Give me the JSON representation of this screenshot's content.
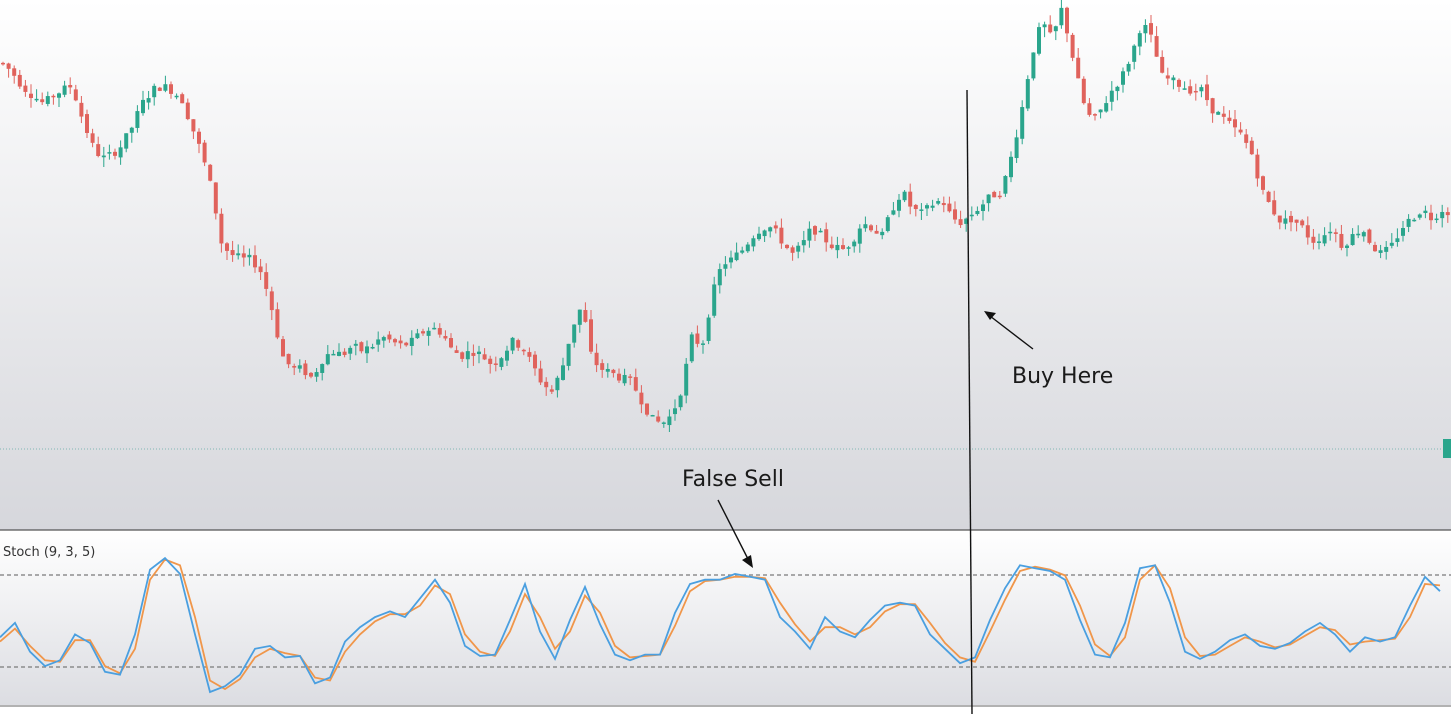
{
  "chart_data": {
    "type": "candlestick",
    "colors": {
      "up": "#2aa58c",
      "down": "#e0625c",
      "stoch_k": "#4a9fe0",
      "stoch_d": "#f0964a",
      "price_bg_top": "#ffffff",
      "price_bg_bottom": "#d8d9de",
      "guide": "#111111"
    },
    "price_axis": {
      "range": [
        0,
        100
      ],
      "note_units": "relative (no price scale visible)"
    },
    "price_close_path": [
      [
        0,
        88
      ],
      [
        10,
        86
      ],
      [
        20,
        83
      ],
      [
        30,
        81
      ],
      [
        42,
        79
      ],
      [
        52,
        81
      ],
      [
        60,
        82
      ],
      [
        70,
        83
      ],
      [
        80,
        76
      ],
      [
        90,
        70
      ],
      [
        100,
        67
      ],
      [
        110,
        68
      ],
      [
        120,
        70
      ],
      [
        130,
        74
      ],
      [
        140,
        79
      ],
      [
        150,
        82
      ],
      [
        160,
        83
      ],
      [
        170,
        82
      ],
      [
        180,
        80
      ],
      [
        190,
        74
      ],
      [
        200,
        68
      ],
      [
        210,
        60
      ],
      [
        220,
        48
      ],
      [
        230,
        46
      ],
      [
        240,
        45
      ],
      [
        250,
        45
      ],
      [
        260,
        42
      ],
      [
        270,
        34
      ],
      [
        280,
        24
      ],
      [
        290,
        21
      ],
      [
        300,
        21
      ],
      [
        310,
        19
      ],
      [
        320,
        23
      ],
      [
        330,
        25
      ],
      [
        340,
        24
      ],
      [
        350,
        26
      ],
      [
        360,
        25
      ],
      [
        370,
        26
      ],
      [
        380,
        28
      ],
      [
        390,
        27
      ],
      [
        400,
        26
      ],
      [
        410,
        27
      ],
      [
        420,
        29
      ],
      [
        430,
        30
      ],
      [
        440,
        29
      ],
      [
        450,
        25
      ],
      [
        460,
        24
      ],
      [
        470,
        25
      ],
      [
        480,
        24
      ],
      [
        490,
        22
      ],
      [
        500,
        24
      ],
      [
        510,
        27
      ],
      [
        520,
        26
      ],
      [
        530,
        22
      ],
      [
        540,
        18
      ],
      [
        550,
        16
      ],
      [
        560,
        21
      ],
      [
        570,
        30
      ],
      [
        580,
        35
      ],
      [
        590,
        23
      ],
      [
        600,
        21
      ],
      [
        610,
        20
      ],
      [
        620,
        19
      ],
      [
        630,
        18
      ],
      [
        640,
        14
      ],
      [
        650,
        10
      ],
      [
        660,
        9
      ],
      [
        670,
        11
      ],
      [
        680,
        17
      ],
      [
        690,
        28
      ],
      [
        700,
        26
      ],
      [
        710,
        37
      ],
      [
        720,
        44
      ],
      [
        730,
        45
      ],
      [
        740,
        47
      ],
      [
        750,
        50
      ],
      [
        760,
        52
      ],
      [
        770,
        52
      ],
      [
        780,
        49
      ],
      [
        790,
        46
      ],
      [
        800,
        48
      ],
      [
        810,
        52
      ],
      [
        820,
        50
      ],
      [
        830,
        48
      ],
      [
        840,
        47
      ],
      [
        850,
        49
      ],
      [
        860,
        53
      ],
      [
        870,
        52
      ],
      [
        880,
        50
      ],
      [
        890,
        56
      ],
      [
        900,
        60
      ],
      [
        910,
        56
      ],
      [
        920,
        55
      ],
      [
        930,
        57
      ],
      [
        940,
        58
      ],
      [
        950,
        54
      ],
      [
        960,
        53
      ],
      [
        970,
        55
      ],
      [
        980,
        57
      ],
      [
        990,
        59
      ],
      [
        1000,
        60
      ],
      [
        1010,
        68
      ],
      [
        1020,
        78
      ],
      [
        1030,
        90
      ],
      [
        1040,
        97
      ],
      [
        1050,
        93
      ],
      [
        1060,
        100
      ],
      [
        1070,
        90
      ],
      [
        1080,
        80
      ],
      [
        1090,
        75
      ],
      [
        1100,
        78
      ],
      [
        1110,
        82
      ],
      [
        1120,
        85
      ],
      [
        1130,
        90
      ],
      [
        1140,
        97
      ],
      [
        1150,
        93
      ],
      [
        1160,
        85
      ],
      [
        1170,
        84
      ],
      [
        1180,
        83
      ],
      [
        1190,
        82
      ],
      [
        1200,
        82
      ],
      [
        1210,
        78
      ],
      [
        1220,
        76
      ],
      [
        1230,
        74
      ],
      [
        1240,
        72
      ],
      [
        1250,
        68
      ],
      [
        1260,
        60
      ],
      [
        1270,
        56
      ],
      [
        1280,
        53
      ],
      [
        1290,
        54
      ],
      [
        1300,
        52
      ],
      [
        1310,
        49
      ],
      [
        1320,
        50
      ],
      [
        1330,
        52
      ],
      [
        1340,
        48
      ],
      [
        1350,
        50
      ],
      [
        1360,
        52
      ],
      [
        1370,
        48
      ],
      [
        1380,
        46
      ],
      [
        1390,
        48
      ],
      [
        1400,
        52
      ],
      [
        1410,
        54
      ],
      [
        1420,
        56
      ],
      [
        1430,
        54
      ],
      [
        1440,
        56
      ],
      [
        1451,
        55
      ]
    ],
    "stochastic": {
      "label": "Stoch (9, 3, 5)",
      "ylim": [
        0,
        100
      ],
      "overbought": 80,
      "oversold": 20,
      "k": [
        [
          0,
          38
        ],
        [
          15,
          48
        ],
        [
          30,
          28
        ],
        [
          45,
          18
        ],
        [
          60,
          22
        ],
        [
          75,
          40
        ],
        [
          90,
          34
        ],
        [
          105,
          14
        ],
        [
          120,
          12
        ],
        [
          135,
          40
        ],
        [
          150,
          85
        ],
        [
          165,
          93
        ],
        [
          180,
          82
        ],
        [
          195,
          40
        ],
        [
          210,
          0
        ],
        [
          225,
          4
        ],
        [
          240,
          12
        ],
        [
          255,
          30
        ],
        [
          270,
          32
        ],
        [
          285,
          24
        ],
        [
          300,
          25
        ],
        [
          315,
          6
        ],
        [
          330,
          10
        ],
        [
          345,
          35
        ],
        [
          360,
          45
        ],
        [
          375,
          52
        ],
        [
          390,
          56
        ],
        [
          405,
          52
        ],
        [
          420,
          65
        ],
        [
          435,
          78
        ],
        [
          450,
          62
        ],
        [
          465,
          32
        ],
        [
          480,
          25
        ],
        [
          495,
          26
        ],
        [
          510,
          50
        ],
        [
          525,
          75
        ],
        [
          540,
          42
        ],
        [
          555,
          23
        ],
        [
          570,
          50
        ],
        [
          585,
          73
        ],
        [
          600,
          47
        ],
        [
          615,
          26
        ],
        [
          630,
          22
        ],
        [
          645,
          26
        ],
        [
          660,
          26
        ],
        [
          675,
          55
        ],
        [
          690,
          75
        ],
        [
          705,
          78
        ],
        [
          720,
          78
        ],
        [
          735,
          82
        ],
        [
          750,
          80
        ],
        [
          765,
          78
        ],
        [
          780,
          52
        ],
        [
          795,
          42
        ],
        [
          810,
          30
        ],
        [
          825,
          52
        ],
        [
          840,
          42
        ],
        [
          855,
          38
        ],
        [
          870,
          50
        ],
        [
          885,
          60
        ],
        [
          900,
          62
        ],
        [
          915,
          60
        ],
        [
          930,
          40
        ],
        [
          945,
          30
        ],
        [
          960,
          20
        ],
        [
          975,
          24
        ],
        [
          990,
          50
        ],
        [
          1005,
          72
        ],
        [
          1020,
          88
        ],
        [
          1035,
          86
        ],
        [
          1050,
          84
        ],
        [
          1065,
          78
        ],
        [
          1080,
          50
        ],
        [
          1095,
          26
        ],
        [
          1110,
          24
        ],
        [
          1125,
          48
        ],
        [
          1140,
          86
        ],
        [
          1155,
          88
        ],
        [
          1170,
          62
        ],
        [
          1185,
          28
        ],
        [
          1200,
          23
        ],
        [
          1215,
          28
        ],
        [
          1230,
          36
        ],
        [
          1245,
          40
        ],
        [
          1260,
          32
        ],
        [
          1275,
          30
        ],
        [
          1290,
          34
        ],
        [
          1305,
          42
        ],
        [
          1320,
          48
        ],
        [
          1335,
          40
        ],
        [
          1350,
          28
        ],
        [
          1365,
          38
        ],
        [
          1380,
          35
        ],
        [
          1395,
          38
        ],
        [
          1410,
          60
        ],
        [
          1425,
          80
        ],
        [
          1440,
          70
        ]
      ],
      "d": [
        [
          0,
          35
        ],
        [
          15,
          44
        ],
        [
          30,
          32
        ],
        [
          45,
          22
        ],
        [
          60,
          21
        ],
        [
          75,
          36
        ],
        [
          90,
          36
        ],
        [
          105,
          18
        ],
        [
          120,
          13
        ],
        [
          135,
          30
        ],
        [
          150,
          78
        ],
        [
          165,
          92
        ],
        [
          180,
          88
        ],
        [
          195,
          52
        ],
        [
          210,
          8
        ],
        [
          225,
          2
        ],
        [
          240,
          9
        ],
        [
          255,
          24
        ],
        [
          270,
          30
        ],
        [
          285,
          27
        ],
        [
          300,
          25
        ],
        [
          315,
          10
        ],
        [
          330,
          8
        ],
        [
          345,
          28
        ],
        [
          360,
          40
        ],
        [
          375,
          49
        ],
        [
          390,
          54
        ],
        [
          405,
          54
        ],
        [
          420,
          60
        ],
        [
          435,
          74
        ],
        [
          450,
          68
        ],
        [
          465,
          40
        ],
        [
          480,
          28
        ],
        [
          495,
          25
        ],
        [
          510,
          42
        ],
        [
          525,
          68
        ],
        [
          540,
          52
        ],
        [
          555,
          30
        ],
        [
          570,
          42
        ],
        [
          585,
          67
        ],
        [
          600,
          55
        ],
        [
          615,
          32
        ],
        [
          630,
          24
        ],
        [
          645,
          25
        ],
        [
          660,
          26
        ],
        [
          675,
          46
        ],
        [
          690,
          70
        ],
        [
          705,
          77
        ],
        [
          720,
          78
        ],
        [
          735,
          80
        ],
        [
          750,
          80
        ],
        [
          765,
          79
        ],
        [
          780,
          62
        ],
        [
          795,
          47
        ],
        [
          810,
          35
        ],
        [
          825,
          45
        ],
        [
          840,
          45
        ],
        [
          855,
          40
        ],
        [
          870,
          45
        ],
        [
          885,
          56
        ],
        [
          900,
          61
        ],
        [
          915,
          61
        ],
        [
          930,
          48
        ],
        [
          945,
          34
        ],
        [
          960,
          24
        ],
        [
          975,
          21
        ],
        [
          990,
          42
        ],
        [
          1005,
          64
        ],
        [
          1020,
          84
        ],
        [
          1035,
          87
        ],
        [
          1050,
          85
        ],
        [
          1065,
          81
        ],
        [
          1080,
          60
        ],
        [
          1095,
          33
        ],
        [
          1110,
          25
        ],
        [
          1125,
          38
        ],
        [
          1140,
          78
        ],
        [
          1155,
          88
        ],
        [
          1170,
          72
        ],
        [
          1185,
          38
        ],
        [
          1200,
          25
        ],
        [
          1215,
          26
        ],
        [
          1230,
          32
        ],
        [
          1245,
          38
        ],
        [
          1260,
          35
        ],
        [
          1275,
          31
        ],
        [
          1290,
          33
        ],
        [
          1305,
          39
        ],
        [
          1320,
          45
        ],
        [
          1335,
          43
        ],
        [
          1350,
          33
        ],
        [
          1365,
          35
        ],
        [
          1380,
          36
        ],
        [
          1395,
          37
        ],
        [
          1410,
          52
        ],
        [
          1425,
          75
        ],
        [
          1440,
          74
        ]
      ]
    },
    "annotations": [
      {
        "text": "Buy Here"
      },
      {
        "text": "False Sell"
      }
    ]
  }
}
